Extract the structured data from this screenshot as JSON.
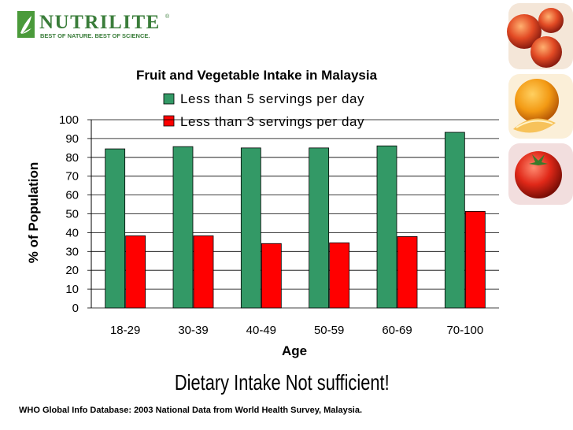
{
  "logo": {
    "name": "NUTRILITE",
    "tagline": "BEST OF NATURE. BEST OF SCIENCE.",
    "mark": "®",
    "color": "#3a7d3a"
  },
  "headline": "Dietary Intake Not sufficient!",
  "source": "WHO Global Info Database:  2003 National Data from World Health Survey, Malaysia.",
  "chart_data": {
    "type": "bar",
    "title": "Fruit and Vegetable Intake in Malaysia",
    "xlabel": "Age",
    "ylabel": "% of Population",
    "categories": [
      "18-29",
      "30-39",
      "40-49",
      "50-59",
      "60-69",
      "70-100"
    ],
    "series": [
      {
        "name": "Less than 5 servings per day",
        "color": "#339966",
        "values": [
          84.5,
          85.7,
          85,
          85,
          86.1,
          93.3
        ]
      },
      {
        "name": "Less than 3 servings per day",
        "color": "#ff0000",
        "values": [
          38.3,
          38.3,
          34.2,
          34.6,
          37.9,
          51.3
        ]
      }
    ],
    "ylim": [
      0,
      100
    ],
    "yticks": [
      "0",
      "10",
      "20",
      "30",
      "40",
      "50",
      "60",
      "70",
      "80",
      "90",
      "100"
    ],
    "grid": true,
    "legend": "top"
  }
}
